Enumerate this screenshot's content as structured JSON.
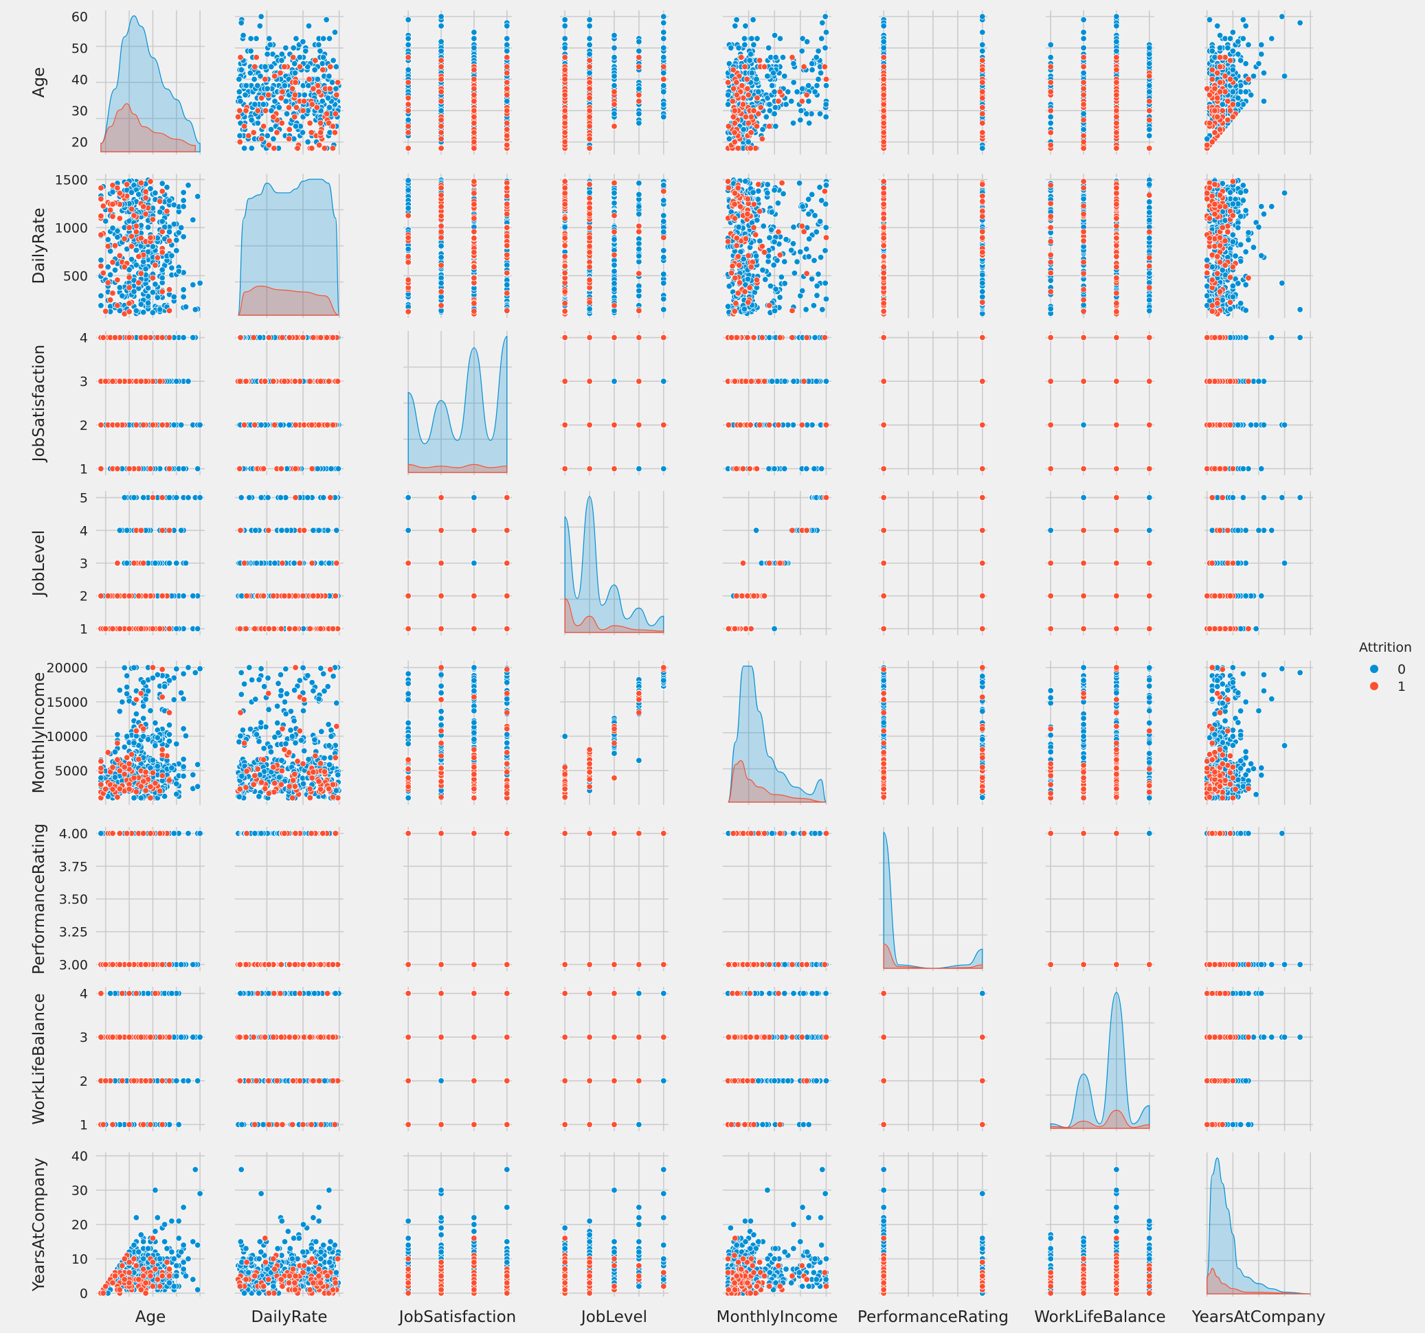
{
  "chart_data": {
    "type": "scatter",
    "kind": "pairplot",
    "variables": [
      "Age",
      "DailyRate",
      "JobSatisfaction",
      "JobLevel",
      "MonthlyIncome",
      "PerformanceRating",
      "WorkLifeBalance",
      "YearsAtCompany"
    ],
    "diagonal": "kde",
    "hue": "Attrition",
    "legend": {
      "title": "Attrition",
      "placement": "right-center",
      "entries": [
        {
          "label": "0",
          "color": "#008fd5"
        },
        {
          "label": "1",
          "color": "#fc4f30"
        }
      ]
    },
    "colors": {
      "0": "#008fd5",
      "1": "#fc4f30",
      "background": "#f0f0f0",
      "grid": "#cbcbcb"
    },
    "grid": true,
    "axes": {
      "Age": {
        "range": [
          16,
          62
        ],
        "ticks": [
          20,
          30,
          40,
          50,
          60
        ],
        "tick_labels": [
          "20",
          "30",
          "40",
          "50",
          "60"
        ],
        "data_range": [
          18,
          60
        ]
      },
      "DailyRate": {
        "range": [
          60,
          1560
        ],
        "ticks": [
          500,
          1000,
          1500
        ],
        "tick_labels": [
          "500",
          "1000",
          "1500"
        ],
        "data_range": [
          102,
          1499
        ]
      },
      "JobSatisfaction": {
        "range": [
          0.85,
          4.15
        ],
        "ticks": [
          1,
          2,
          3,
          4
        ],
        "tick_labels": [
          "1",
          "2",
          "3",
          "4"
        ],
        "values": [
          1,
          2,
          3,
          4
        ]
      },
      "JobLevel": {
        "range": [
          0.8,
          5.2
        ],
        "ticks": [
          1,
          2,
          3,
          4,
          5
        ],
        "tick_labels": [
          "1",
          "2",
          "3",
          "4",
          "5"
        ],
        "values": [
          1,
          2,
          3,
          4,
          5
        ]
      },
      "MonthlyIncome": {
        "range": [
          0,
          21000
        ],
        "ticks": [
          5000,
          10000,
          15000,
          20000
        ],
        "tick_labels": [
          "5000",
          "10000",
          "15000",
          "20000"
        ],
        "data_range": [
          1009,
          19999
        ]
      },
      "PerformanceRating": {
        "range": [
          2.95,
          4.05
        ],
        "ticks": [
          3.0,
          3.25,
          3.5,
          3.75,
          4.0
        ],
        "tick_labels": [
          "3.00",
          "3.25",
          "3.50",
          "3.75",
          "4.00"
        ],
        "values": [
          3,
          4
        ]
      },
      "WorkLifeBalance": {
        "range": [
          0.85,
          4.15
        ],
        "ticks": [
          1,
          2,
          3,
          4
        ],
        "tick_labels": [
          "1",
          "2",
          "3",
          "4"
        ],
        "values": [
          1,
          2,
          3,
          4
        ]
      },
      "YearsAtCompany": {
        "range": [
          -1,
          41
        ],
        "ticks": [
          0,
          10,
          20,
          30,
          40
        ],
        "tick_labels": [
          "0",
          "10",
          "20",
          "30",
          "40"
        ],
        "data_range": [
          0,
          40
        ]
      }
    },
    "diagonal_kde": {
      "Age": {
        "0": [
          [
            18,
            0.004
          ],
          [
            24,
            0.03
          ],
          [
            28,
            0.055
          ],
          [
            32,
            0.065
          ],
          [
            35,
            0.06
          ],
          [
            40,
            0.045
          ],
          [
            46,
            0.03
          ],
          [
            50,
            0.025
          ],
          [
            55,
            0.015
          ],
          [
            60,
            0.004
          ]
        ],
        "1": [
          [
            18,
            0.004
          ],
          [
            22,
            0.012
          ],
          [
            26,
            0.02
          ],
          [
            29,
            0.023
          ],
          [
            32,
            0.018
          ],
          [
            36,
            0.012
          ],
          [
            42,
            0.009
          ],
          [
            50,
            0.006
          ],
          [
            58,
            0.003
          ]
        ]
      },
      "DailyRate": {
        "0": [
          [
            102,
            0.0
          ],
          [
            180,
            0.0005
          ],
          [
            250,
            0.0006
          ],
          [
            400,
            0.00062
          ],
          [
            500,
            0.00068
          ],
          [
            650,
            0.00063
          ],
          [
            800,
            0.00063
          ],
          [
            900,
            0.00065
          ],
          [
            1000,
            0.00069
          ],
          [
            1100,
            0.0007
          ],
          [
            1250,
            0.0007
          ],
          [
            1350,
            0.00068
          ],
          [
            1450,
            0.0005
          ],
          [
            1499,
            0.0
          ]
        ],
        "1": [
          [
            102,
            0.0
          ],
          [
            200,
            0.00012
          ],
          [
            400,
            0.00015
          ],
          [
            700,
            0.00013
          ],
          [
            1000,
            0.00012
          ],
          [
            1300,
            0.0001
          ],
          [
            1499,
            0.0
          ]
        ]
      },
      "JobSatisfaction": {
        "0": [
          [
            1,
            0.5
          ],
          [
            1.5,
            0.18
          ],
          [
            2,
            0.45
          ],
          [
            2.5,
            0.2
          ],
          [
            3,
            0.78
          ],
          [
            3.5,
            0.2
          ],
          [
            4,
            0.85
          ]
        ],
        "1": [
          [
            1,
            0.05
          ],
          [
            1.5,
            0.03
          ],
          [
            2,
            0.04
          ],
          [
            2.5,
            0.03
          ],
          [
            3,
            0.05
          ],
          [
            3.5,
            0.03
          ],
          [
            4,
            0.04
          ]
        ]
      },
      "JobLevel": {
        "0": [
          [
            1,
            0.85
          ],
          [
            1.5,
            0.25
          ],
          [
            2,
            1.0
          ],
          [
            2.5,
            0.2
          ],
          [
            3,
            0.35
          ],
          [
            3.5,
            0.1
          ],
          [
            4,
            0.18
          ],
          [
            4.5,
            0.05
          ],
          [
            5,
            0.12
          ]
        ],
        "1": [
          [
            1,
            0.25
          ],
          [
            1.5,
            0.05
          ],
          [
            2,
            0.12
          ],
          [
            2.5,
            0.02
          ],
          [
            3,
            0.05
          ],
          [
            4,
            0.02
          ],
          [
            5,
            0.01
          ]
        ]
      },
      "MonthlyIncome": {
        "0": [
          [
            1009,
            0.0
          ],
          [
            2500,
            8e-05
          ],
          [
            4000,
            0.00018
          ],
          [
            5500,
            0.00018
          ],
          [
            7000,
            0.00012
          ],
          [
            9000,
            6e-05
          ],
          [
            11000,
            4e-05
          ],
          [
            14000,
            2e-05
          ],
          [
            17000,
            1e-05
          ],
          [
            19000,
            3e-05
          ],
          [
            19999,
            0.0
          ]
        ],
        "1": [
          [
            1009,
            0.0
          ],
          [
            2500,
            5e-05
          ],
          [
            3500,
            5.5e-05
          ],
          [
            5000,
            3e-05
          ],
          [
            7000,
            2e-05
          ],
          [
            10000,
            1e-05
          ],
          [
            15000,
            5e-06
          ],
          [
            19999,
            0.0
          ]
        ]
      },
      "PerformanceRating": {
        "0": [
          [
            3.0,
            3.9
          ],
          [
            3.15,
            0.1
          ],
          [
            3.5,
            0.0
          ],
          [
            3.85,
            0.1
          ],
          [
            4.0,
            0.55
          ]
        ],
        "1": [
          [
            3.0,
            0.7
          ],
          [
            3.15,
            0.05
          ],
          [
            3.5,
            0.0
          ],
          [
            3.85,
            0.02
          ],
          [
            4.0,
            0.1
          ]
        ]
      },
      "WorkLifeBalance": {
        "0": [
          [
            1,
            0.05
          ],
          [
            1.5,
            0.01
          ],
          [
            2,
            0.6
          ],
          [
            2.5,
            0.05
          ],
          [
            3,
            1.5
          ],
          [
            3.5,
            0.05
          ],
          [
            4,
            0.25
          ]
        ],
        "1": [
          [
            1,
            0.02
          ],
          [
            1.5,
            0.01
          ],
          [
            2,
            0.08
          ],
          [
            2.5,
            0.02
          ],
          [
            3,
            0.2
          ],
          [
            3.5,
            0.01
          ],
          [
            4,
            0.04
          ]
        ]
      },
      "YearsAtCompany": {
        "0": [
          [
            0,
            0.01
          ],
          [
            2,
            0.07
          ],
          [
            4,
            0.08
          ],
          [
            6,
            0.065
          ],
          [
            8,
            0.05
          ],
          [
            10,
            0.035
          ],
          [
            12,
            0.015
          ],
          [
            15,
            0.01
          ],
          [
            20,
            0.006
          ],
          [
            25,
            0.003
          ],
          [
            30,
            0.001
          ],
          [
            40,
            0.0
          ]
        ],
        "1": [
          [
            0,
            0.01
          ],
          [
            1,
            0.012
          ],
          [
            2,
            0.015
          ],
          [
            4,
            0.01
          ],
          [
            6,
            0.006
          ],
          [
            10,
            0.003
          ],
          [
            15,
            0.001
          ],
          [
            40,
            0.0
          ]
        ]
      }
    },
    "sample_points": [
      [
        30,
        1000,
        4,
        2,
        5993,
        3,
        1,
        6,
        1
      ],
      [
        49,
        279,
        2,
        2,
        5130,
        4,
        3,
        10,
        0
      ],
      [
        37,
        1373,
        3,
        1,
        2090,
        3,
        3,
        0,
        1
      ],
      [
        33,
        1392,
        3,
        1,
        2909,
        3,
        3,
        8,
        0
      ],
      [
        27,
        591,
        2,
        1,
        3468,
        3,
        3,
        2,
        0
      ],
      [
        32,
        1005,
        4,
        1,
        3068,
        3,
        2,
        7,
        0
      ],
      [
        59,
        1324,
        1,
        1,
        2670,
        4,
        2,
        1,
        0
      ],
      [
        30,
        1358,
        3,
        1,
        2693,
        4,
        3,
        1,
        0
      ],
      [
        38,
        216,
        3,
        3,
        9526,
        4,
        3,
        9,
        0
      ],
      [
        36,
        1299,
        3,
        2,
        5237,
        3,
        2,
        7,
        0
      ],
      [
        35,
        809,
        2,
        1,
        2426,
        4,
        3,
        5,
        0
      ],
      [
        29,
        153,
        3,
        2,
        4193,
        3,
        3,
        9,
        0
      ],
      [
        31,
        670,
        3,
        1,
        2911,
        4,
        2,
        5,
        0
      ],
      [
        34,
        1346,
        4,
        1,
        2661,
        3,
        3,
        2,
        0
      ],
      [
        28,
        103,
        3,
        1,
        2028,
        3,
        3,
        4,
        1
      ],
      [
        29,
        1389,
        1,
        3,
        9980,
        3,
        2,
        10,
        0
      ],
      [
        32,
        334,
        2,
        1,
        3298,
        4,
        2,
        6,
        0
      ],
      [
        22,
        1123,
        4,
        1,
        2935,
        3,
        3,
        1,
        0
      ],
      [
        53,
        1219,
        4,
        4,
        15427,
        3,
        3,
        25,
        0
      ],
      [
        38,
        371,
        3,
        1,
        3944,
        3,
        3,
        3,
        0
      ],
      [
        24,
        673,
        1,
        1,
        4011,
        3,
        2,
        4,
        0
      ],
      [
        36,
        1218,
        2,
        1,
        3407,
        3,
        3,
        5,
        1
      ],
      [
        34,
        419,
        3,
        3,
        11994,
        3,
        3,
        12,
        0
      ],
      [
        21,
        391,
        4,
        1,
        1232,
        3,
        3,
        0,
        0
      ],
      [
        34,
        699,
        1,
        1,
        2960,
        3,
        3,
        4,
        1
      ],
      [
        53,
        1282,
        1,
        5,
        19094,
        3,
        3,
        14,
        0
      ],
      [
        32,
        1125,
        1,
        3,
        3919,
        3,
        2,
        10,
        1
      ],
      [
        42,
        691,
        2,
        5,
        18947,
        3,
        3,
        22,
        0
      ],
      [
        44,
        477,
        2,
        1,
        2496,
        3,
        3,
        4,
        0
      ],
      [
        46,
        705,
        3,
        4,
        6465,
        3,
        3,
        2,
        0
      ],
      [
        33,
        924,
        4,
        1,
        2206,
        3,
        2,
        10,
        0
      ],
      [
        44,
        1459,
        2,
        2,
        2086,
        3,
        1,
        6,
        0
      ],
      [
        30,
        125,
        1,
        1,
        2293,
        3,
        3,
        3,
        1
      ],
      [
        39,
        895,
        1,
        2,
        2645,
        4,
        3,
        5,
        1
      ],
      [
        24,
        813,
        4,
        1,
        2683,
        3,
        3,
        5,
        1
      ],
      [
        43,
        1273,
        3,
        1,
        2014,
        4,
        3,
        2,
        1
      ],
      [
        50,
        869,
        3,
        1,
        3072,
        3,
        2,
        8,
        0
      ],
      [
        35,
        890,
        3,
        1,
        2693,
        3,
        3,
        1,
        1
      ],
      [
        36,
        852,
        4,
        1,
        9980,
        3,
        2,
        10,
        0
      ],
      [
        33,
        1141,
        3,
        4,
        16595,
        3,
        3,
        22,
        0
      ],
      [
        35,
        464,
        1,
        2,
        4855,
        3,
        3,
        2,
        0
      ],
      [
        27,
        1240,
        1,
        1,
        2478,
        3,
        3,
        4,
        0
      ],
      [
        26,
        1357,
        3,
        1,
        2342,
        3,
        3,
        0,
        1
      ],
      [
        58,
        147,
        4,
        5,
        19246,
        3,
        3,
        36,
        0
      ],
      [
        19,
        528,
        4,
        1,
        1675,
        3,
        1,
        0,
        1
      ],
      [
        20,
        129,
        3,
        1,
        2305,
        3,
        2,
        2,
        1
      ],
      [
        52,
        999,
        2,
        4,
        16313,
        3,
        3,
        12,
        0
      ],
      [
        60,
        422,
        2,
        5,
        19833,
        4,
        3,
        29,
        0
      ],
      [
        45,
        1005,
        3,
        4,
        13695,
        3,
        4,
        20,
        0
      ],
      [
        55,
        1441,
        3,
        5,
        19999,
        4,
        2,
        10,
        0
      ],
      [
        40,
        1202,
        1,
        2,
        6513,
        3,
        3,
        4,
        0
      ],
      [
        25,
        1413,
        2,
        1,
        1118,
        3,
        3,
        1,
        1
      ],
      [
        31,
        1365,
        4,
        2,
        5855,
        4,
        3,
        9,
        0
      ],
      [
        47,
        359,
        4,
        3,
        10248,
        3,
        4,
        3,
        0
      ],
      [
        41,
        1360,
        2,
        3,
        8628,
        3,
        3,
        30,
        0
      ],
      [
        37,
        1141,
        4,
        2,
        4777,
        3,
        2,
        3,
        1
      ],
      [
        23,
        1243,
        3,
        1,
        2275,
        3,
        3,
        3,
        1
      ],
      [
        57,
        405,
        4,
        2,
        4381,
        3,
        3,
        15,
        0
      ],
      [
        48,
        708,
        1,
        2,
        5381,
        3,
        4,
        21,
        0
      ],
      [
        26,
        1096,
        3,
        1,
        2332,
        3,
        3,
        1,
        1
      ]
    ],
    "sample_points_order": [
      "Age",
      "DailyRate",
      "JobSatisfaction",
      "JobLevel",
      "MonthlyIncome",
      "PerformanceRating",
      "WorkLifeBalance",
      "YearsAtCompany",
      "Attrition"
    ]
  }
}
